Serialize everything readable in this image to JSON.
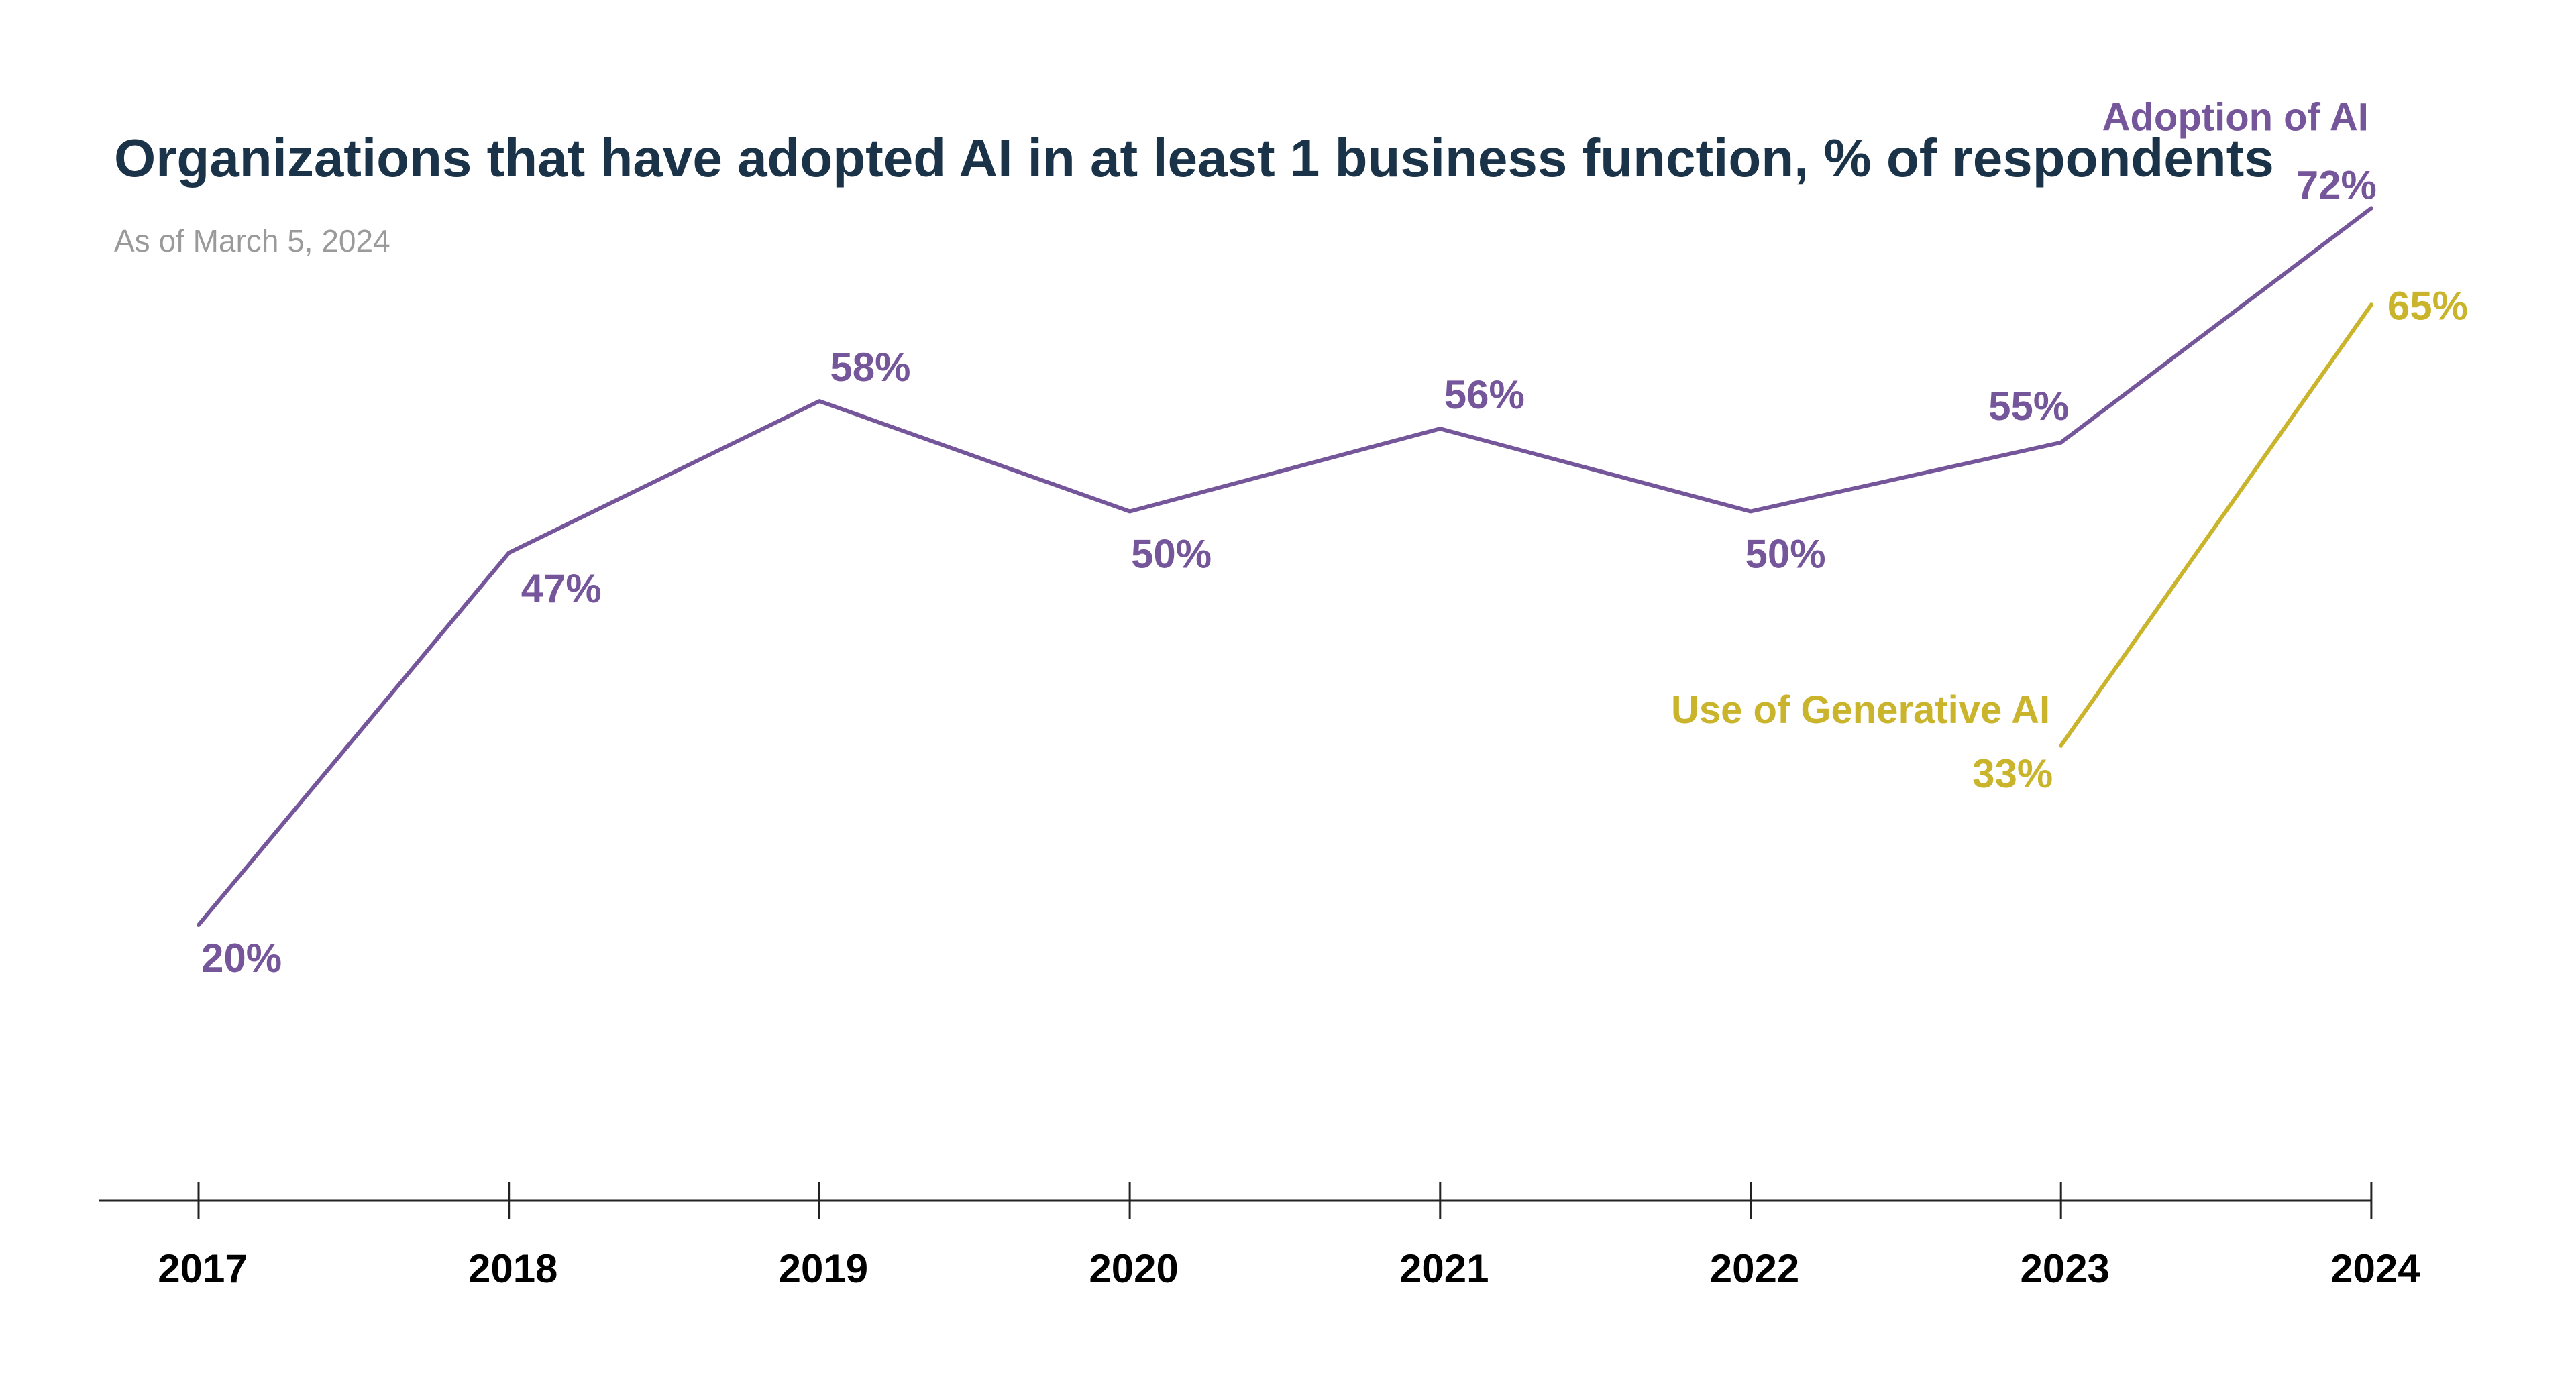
{
  "chart_data": {
    "type": "line",
    "title": "Organizations that have adopted AI in at least 1 business function, % of respondents",
    "subtitle": "As of March 5, 2024",
    "x": [
      "2017",
      "2018",
      "2019",
      "2020",
      "2021",
      "2022",
      "2023",
      "2024"
    ],
    "ylim": [
      0,
      80
    ],
    "grid": false,
    "legend": "direct labels at line ends",
    "series": [
      {
        "name": "Adoption of AI",
        "color": "#75569a",
        "x": [
          "2017",
          "2018",
          "2019",
          "2020",
          "2021",
          "2022",
          "2023",
          "2024"
        ],
        "values": [
          20,
          47,
          58,
          50,
          56,
          50,
          55,
          72
        ],
        "labels": [
          "20%",
          "47%",
          "58%",
          "50%",
          "56%",
          "50%",
          "55%",
          "72%"
        ]
      },
      {
        "name": "Use of Generative AI",
        "color": "#c9b42c",
        "x": [
          "2023",
          "2024"
        ],
        "values": [
          33,
          65
        ],
        "labels": [
          "33%",
          "65%"
        ]
      }
    ]
  }
}
